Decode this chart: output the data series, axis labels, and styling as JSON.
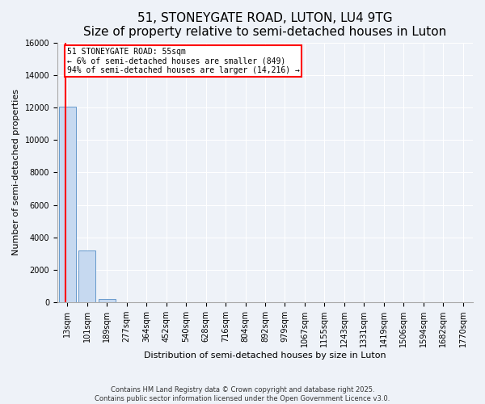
{
  "title": "51, STONEYGATE ROAD, LUTON, LU4 9TG",
  "subtitle": "Size of property relative to semi-detached houses in Luton",
  "xlabel": "Distribution of semi-detached houses by size in Luton",
  "ylabel": "Number of semi-detached properties",
  "footer_line1": "Contains HM Land Registry data © Crown copyright and database right 2025.",
  "footer_line2": "Contains public sector information licensed under the Open Government Licence v3.0.",
  "categories": [
    "13sqm",
    "101sqm",
    "189sqm",
    "277sqm",
    "364sqm",
    "452sqm",
    "540sqm",
    "628sqm",
    "716sqm",
    "804sqm",
    "892sqm",
    "979sqm",
    "1067sqm",
    "1155sqm",
    "1243sqm",
    "1331sqm",
    "1419sqm",
    "1506sqm",
    "1594sqm",
    "1682sqm",
    "1770sqm"
  ],
  "values": [
    12050,
    3200,
    200,
    5,
    1,
    0,
    0,
    0,
    0,
    0,
    0,
    0,
    0,
    0,
    0,
    0,
    0,
    0,
    0,
    0,
    0
  ],
  "bar_color": "#c6d9f0",
  "bar_edge_color": "#6699cc",
  "red_line_x": -0.08,
  "annotation_text": "51 STONEYGATE ROAD: 55sqm\n← 6% of semi-detached houses are smaller (849)\n94% of semi-detached houses are larger (14,216) →",
  "ylim": [
    0,
    16000
  ],
  "yticks": [
    0,
    2000,
    4000,
    6000,
    8000,
    10000,
    12000,
    14000,
    16000
  ],
  "background_color": "#eef2f8",
  "grid_color": "#ffffff",
  "title_fontsize": 11,
  "subtitle_fontsize": 9,
  "annotation_fontsize": 7,
  "axis_fontsize": 7,
  "ylabel_fontsize": 8,
  "xlabel_fontsize": 8
}
